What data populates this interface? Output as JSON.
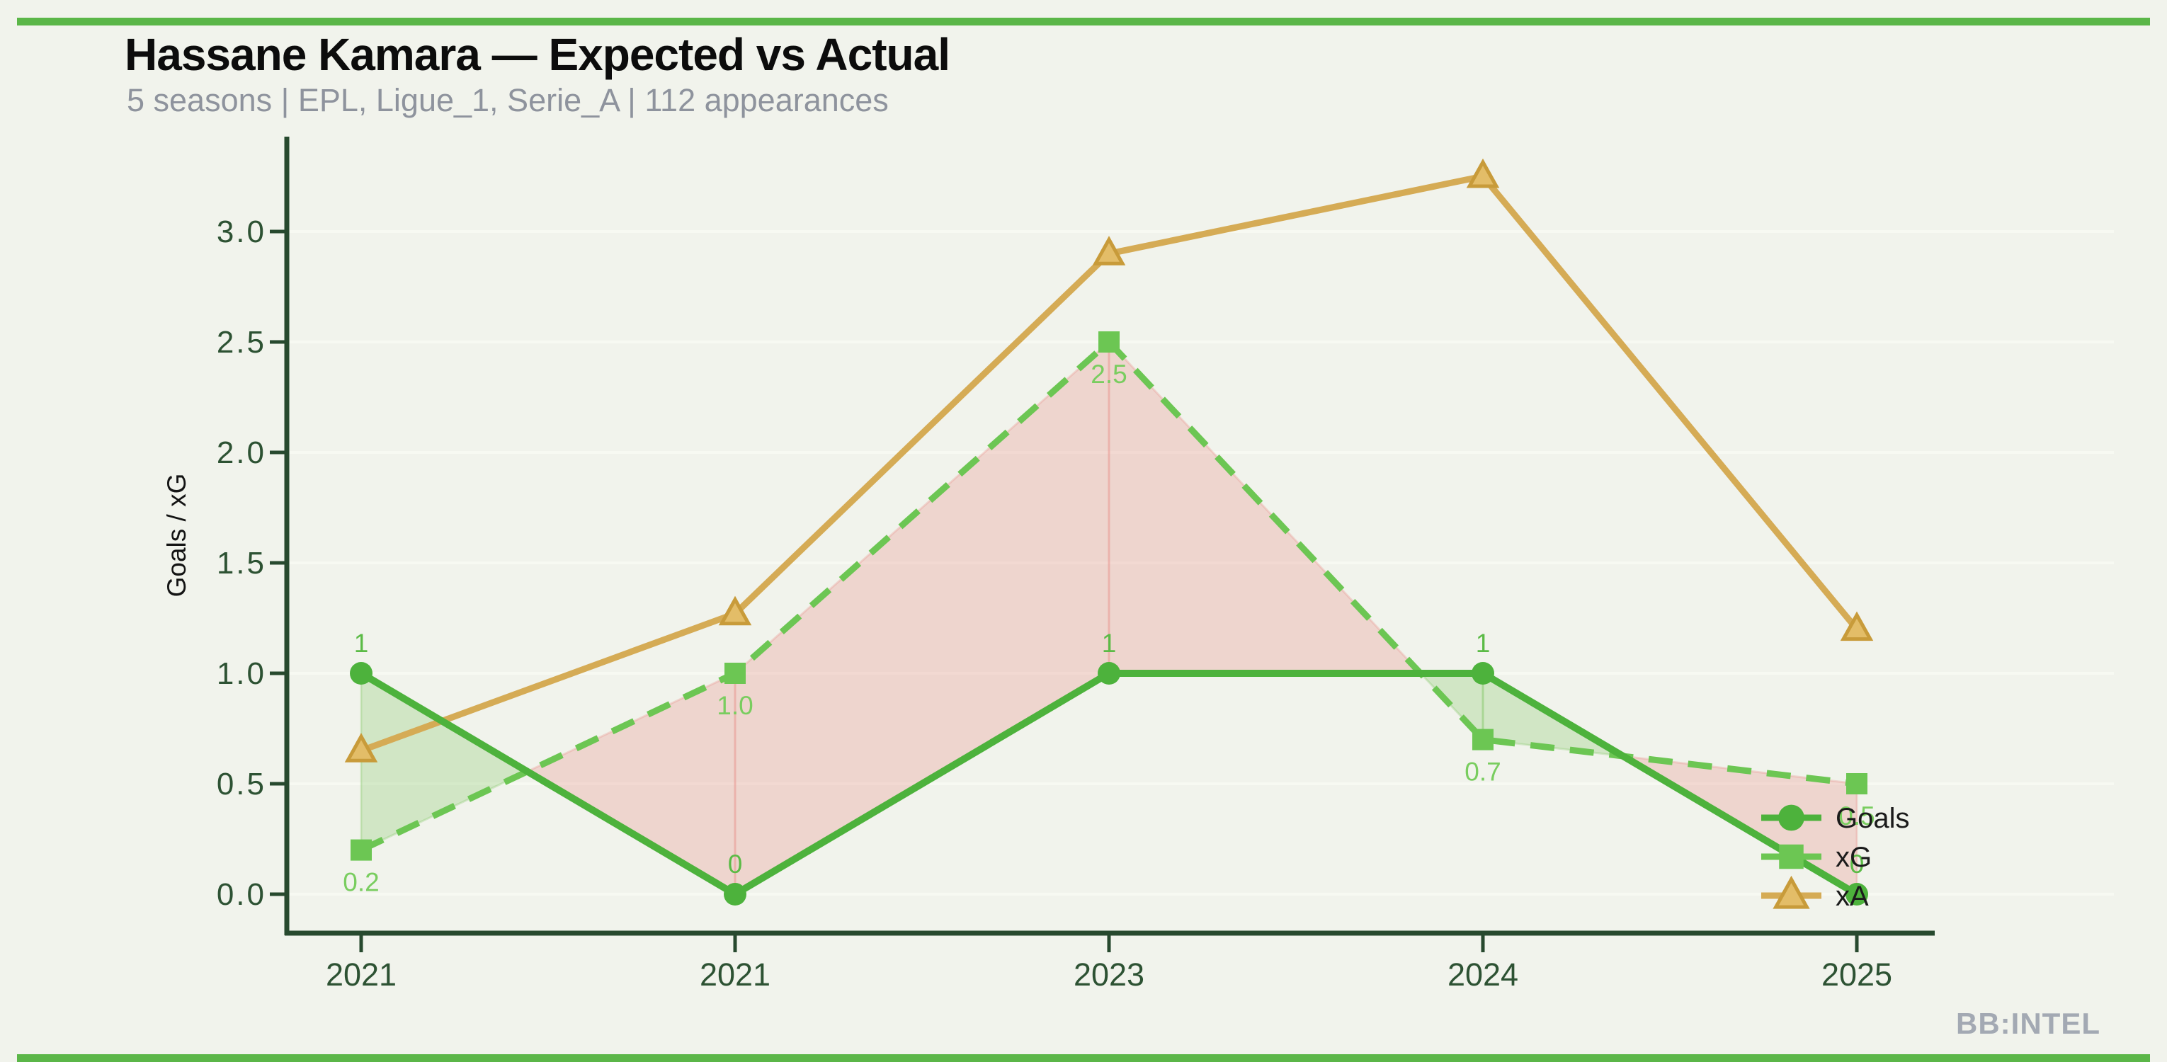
{
  "page": {
    "background_color": "#f1f3ec",
    "accent_bar_color": "#5bb648"
  },
  "header": {
    "title": "Hassane Kamara — Expected vs Actual",
    "subtitle": "5 seasons | EPL, Ligue_1, Serie_A | 112 appearances"
  },
  "watermark": "BB:INTEL",
  "axis": {
    "spine_color": "#27492e",
    "tick_label_color": "#2d5233",
    "grid_color": "#f8faf3"
  },
  "chart_data": {
    "type": "line",
    "title": "Hassane Kamara — Expected vs Actual",
    "subtitle": "5 seasons | EPL, Ligue_1, Serie_A | 112 appearances",
    "categories": [
      "2021",
      "2021",
      "2023",
      "2024",
      "2025"
    ],
    "series": [
      {
        "name": "Goals",
        "values": [
          1,
          0,
          1,
          1,
          0
        ],
        "color": "#4db23c",
        "marker": "circle",
        "line_style": "solid",
        "point_labels": [
          "1",
          "0",
          "1",
          "1",
          "0"
        ],
        "label_color": "#5bbb46",
        "label_position": "above"
      },
      {
        "name": "xG",
        "values": [
          0.2,
          1.0,
          2.5,
          0.7,
          0.5
        ],
        "color": "#6cc653",
        "marker": "square",
        "line_style": "dashed",
        "point_labels": [
          "0.2",
          "1.0",
          "2.5",
          "0.7",
          "0.5"
        ],
        "label_color": "#79cd5f",
        "label_position": "below"
      },
      {
        "name": "xA",
        "values": [
          0.65,
          1.27,
          2.9,
          3.25,
          1.2
        ],
        "color": "#d5ab55",
        "marker": "triangle",
        "marker_fill": "#e3bd68",
        "marker_stroke": "#c89b3a",
        "line_style": "solid",
        "point_labels": null
      }
    ],
    "xlabel": "",
    "ylabel": "Goals / xG",
    "y_ticks": [
      "0.0",
      "0.5",
      "1.0",
      "1.5",
      "2.0",
      "2.5",
      "3.0"
    ],
    "y_tick_values": [
      0,
      0.5,
      1.0,
      1.5,
      2.0,
      2.5,
      3.0
    ],
    "ylim": [
      -0.18,
      3.43
    ],
    "grid": "faint horizontal gridlines at each 0.5",
    "legend": {
      "position": "lower right, inside plot",
      "entries": [
        "Goals",
        "xG",
        "xA"
      ],
      "label_color": "#1b1b1b"
    },
    "diff_fill": {
      "goals_above_xg_color": "rgba(124,196,96,0.28)",
      "xg_above_goals_color": "rgba(234,148,142,0.32)"
    }
  }
}
